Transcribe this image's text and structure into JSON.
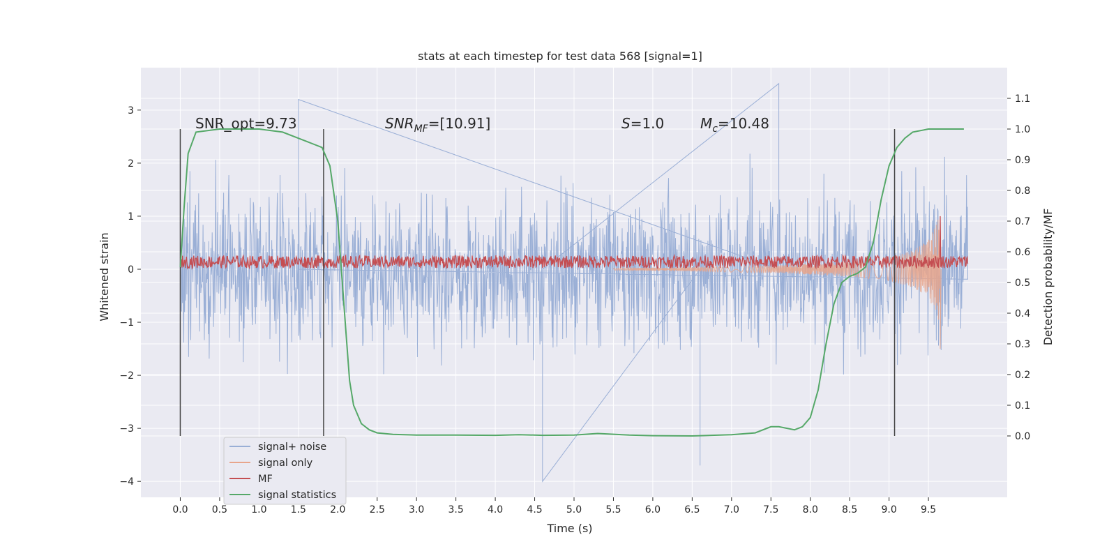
{
  "colors": {
    "plot_bg": "#eaeaf2",
    "grid": "#ffffff",
    "signal_noise": "#9aafd6",
    "signal_only": "#e8a58b",
    "mf": "#c44e52",
    "signal_statistics": "#55a868",
    "vline": "#444444",
    "text": "#262626"
  },
  "chart_data": {
    "type": "line",
    "title": "stats at each timestep for test data 568 [signal=1]",
    "xlabel": "Time (s)",
    "ylabel_left": "Whitened strain",
    "ylabel_right": "Detection probability/MF",
    "xlim": [
      -0.5,
      10.5
    ],
    "ylim_left": [
      -4.3,
      3.8
    ],
    "ylim_right": [
      -0.2,
      1.2
    ],
    "xticks": [
      0.0,
      0.5,
      1.0,
      1.5,
      2.0,
      2.5,
      3.0,
      3.5,
      4.0,
      4.5,
      5.0,
      5.5,
      6.0,
      6.5,
      7.0,
      7.5,
      8.0,
      8.5,
      9.0,
      9.5
    ],
    "xtick_labels": [
      "0.0",
      "0.5",
      "1.0",
      "1.5",
      "2.0",
      "2.5",
      "3.0",
      "3.5",
      "4.0",
      "4.5",
      "5.0",
      "5.5",
      "6.0",
      "6.5",
      "7.0",
      "7.5",
      "8.0",
      "8.5",
      "9.0",
      "9.5"
    ],
    "yticks_left": [
      3,
      2,
      1,
      0,
      -1,
      -2,
      -3,
      -4
    ],
    "ytick_labels_left": [
      "3",
      "2",
      "1",
      "0",
      "−1",
      "−2",
      "−3",
      "−4"
    ],
    "yticks_right": [
      1.1,
      1.0,
      0.9,
      0.8,
      0.7,
      0.6,
      0.5,
      0.4,
      0.3,
      0.2,
      0.1,
      0.0
    ],
    "ytick_labels_right": [
      "1.1",
      "1.0",
      "0.9",
      "0.8",
      "0.7",
      "0.6",
      "0.5",
      "0.4",
      "0.3",
      "0.2",
      "0.1",
      "0.0"
    ],
    "grid": true,
    "legend_position": "lower-left",
    "signal_noise": {
      "name": "signal+ noise",
      "t_range": [
        0.0,
        10.0
      ],
      "y_range_approx": [
        -4.0,
        3.5
      ],
      "note_peaks": [
        [
          1.5,
          3.2
        ],
        [
          7.6,
          3.5
        ],
        [
          4.6,
          -4.0
        ],
        [
          6.6,
          -3.7
        ]
      ]
    },
    "signal_only": {
      "name": "signal only",
      "t": [
        5.5,
        6.5,
        7.5,
        8.0,
        8.5,
        9.0,
        9.3,
        9.5,
        9.6,
        9.65
      ],
      "envelope": [
        0.02,
        0.04,
        0.07,
        0.1,
        0.14,
        0.22,
        0.35,
        0.55,
        0.85,
        1.1
      ]
    },
    "mf": {
      "name": "MF",
      "t_range": [
        0.0,
        10.0
      ],
      "baseline": 0.14,
      "amplitude": 0.12,
      "spike": [
        9.65,
        1.0
      ]
    },
    "signal_statistics": {
      "name": "signal statistics",
      "t": [
        0.0,
        0.05,
        0.1,
        0.2,
        0.5,
        1.0,
        1.3,
        1.5,
        1.6,
        1.7,
        1.8,
        1.9,
        2.0,
        2.1,
        2.15,
        2.2,
        2.3,
        2.4,
        2.5,
        2.7,
        3.0,
        3.5,
        4.0,
        4.3,
        4.6,
        5.0,
        5.3,
        5.7,
        6.0,
        6.5,
        7.0,
        7.3,
        7.5,
        7.6,
        7.8,
        7.9,
        8.0,
        8.1,
        8.2,
        8.3,
        8.4,
        8.5,
        8.6,
        8.7,
        8.8,
        8.9,
        9.0,
        9.1,
        9.2,
        9.3,
        9.5,
        9.7,
        9.95
      ],
      "p": [
        0.55,
        0.75,
        0.92,
        0.99,
        1.0,
        1.0,
        0.99,
        0.97,
        0.96,
        0.95,
        0.94,
        0.88,
        0.7,
        0.35,
        0.18,
        0.1,
        0.04,
        0.02,
        0.01,
        0.005,
        0.003,
        0.003,
        0.002,
        0.004,
        0.002,
        0.003,
        0.008,
        0.003,
        0.001,
        0.0,
        0.004,
        0.01,
        0.03,
        0.03,
        0.02,
        0.03,
        0.06,
        0.15,
        0.3,
        0.43,
        0.5,
        0.52,
        0.53,
        0.55,
        0.63,
        0.77,
        0.88,
        0.94,
        0.97,
        0.99,
        1.0,
        1.0,
        1.0
      ]
    },
    "vlines": [
      0.0,
      1.82,
      9.07
    ],
    "annotations": [
      {
        "text": "SNR_opt=9.73",
        "x": 0.2,
        "y_right": 1.0
      },
      {
        "text_main": "SNR",
        "text_sub": "MF",
        "text_rest": "=[10.91]",
        "italic": true,
        "x": 2.6,
        "y_right": 1.0
      },
      {
        "text": "S=1.0",
        "italic_prefix": "S",
        "rest": "=1.0",
        "x": 5.6,
        "y_right": 1.0
      },
      {
        "text_main": "M",
        "text_sub": "c",
        "text_rest": "=10.48",
        "italic": true,
        "x": 6.6,
        "y_right": 1.0
      }
    ]
  },
  "legend": {
    "items": [
      {
        "label": "signal+ noise",
        "color_key": "signal_noise"
      },
      {
        "label": "signal only",
        "color_key": "signal_only"
      },
      {
        "label": "MF",
        "color_key": "mf"
      },
      {
        "label": "signal statistics",
        "color_key": "signal_statistics"
      }
    ]
  }
}
